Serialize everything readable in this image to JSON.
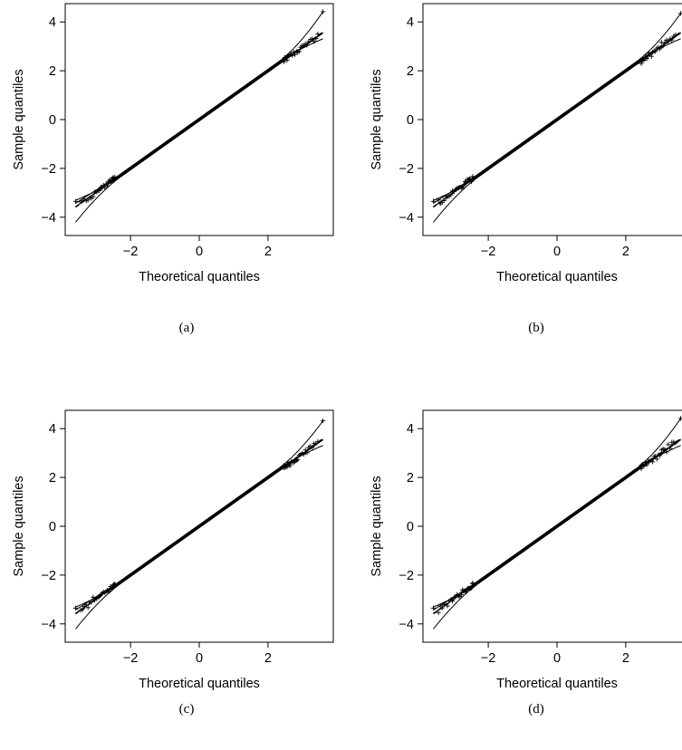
{
  "figure": {
    "panels": [
      {
        "caption": "(a)",
        "upper_tail_top": 4.42
      },
      {
        "caption": "(b)",
        "upper_tail_top": 4.35
      },
      {
        "caption": "(c)",
        "upper_tail_top": 4.32
      },
      {
        "caption": "(d)",
        "upper_tail_top": 4.42
      }
    ]
  },
  "chart_data": [
    {
      "type": "scatter",
      "subtype": "normal-qq-plot-with-envelope",
      "caption": "(a)",
      "xlabel": "Theoretical quantiles",
      "ylabel": "Sample quantiles",
      "xlim": [
        -3.9,
        3.9
      ],
      "ylim": [
        -4.75,
        4.75
      ],
      "xticks": [
        -2,
        0,
        2
      ],
      "xtick_labels": [
        "−2",
        "0",
        "2"
      ],
      "yticks": [
        -4,
        -2,
        0,
        2,
        4
      ],
      "ytick_labels": [
        "−4",
        "−2",
        "0",
        "2",
        "4"
      ],
      "grid": false,
      "points_x_range": [
        -3.6,
        3.6
      ],
      "reference_line": {
        "style": "dashed",
        "slope": 1.0,
        "intercept": 0.0
      },
      "envelope": {
        "style": "solid",
        "lower_tail_min": -4.2,
        "upper_tail_max": 4.42
      },
      "points_marker": "+"
    },
    {
      "type": "scatter",
      "subtype": "normal-qq-plot-with-envelope",
      "caption": "(b)",
      "xlabel": "Theoretical quantiles",
      "ylabel": "Sample quantiles",
      "xlim": [
        -3.9,
        3.9
      ],
      "ylim": [
        -4.75,
        4.75
      ],
      "xticks": [
        -2,
        0,
        2
      ],
      "xtick_labels": [
        "−2",
        "0",
        "2"
      ],
      "yticks": [
        -4,
        -2,
        0,
        2,
        4
      ],
      "ytick_labels": [
        "−4",
        "−2",
        "0",
        "2",
        "4"
      ],
      "grid": false,
      "points_x_range": [
        -3.6,
        3.6
      ],
      "reference_line": {
        "style": "dashed",
        "slope": 1.0,
        "intercept": 0.0
      },
      "envelope": {
        "style": "solid",
        "lower_tail_min": -4.2,
        "upper_tail_max": 4.35
      },
      "points_marker": "+"
    },
    {
      "type": "scatter",
      "subtype": "normal-qq-plot-with-envelope",
      "caption": "(c)",
      "xlabel": "Theoretical quantiles",
      "ylabel": "Sample quantiles",
      "xlim": [
        -3.9,
        3.9
      ],
      "ylim": [
        -4.75,
        4.75
      ],
      "xticks": [
        -2,
        0,
        2
      ],
      "xtick_labels": [
        "−2",
        "0",
        "2"
      ],
      "yticks": [
        -4,
        -2,
        0,
        2,
        4
      ],
      "ytick_labels": [
        "−4",
        "−2",
        "0",
        "2",
        "4"
      ],
      "grid": false,
      "points_x_range": [
        -3.6,
        3.6
      ],
      "reference_line": {
        "style": "dashed",
        "slope": 1.0,
        "intercept": 0.0
      },
      "envelope": {
        "style": "solid",
        "lower_tail_min": -4.2,
        "upper_tail_max": 4.32
      },
      "points_marker": "+"
    },
    {
      "type": "scatter",
      "subtype": "normal-qq-plot-with-envelope",
      "caption": "(d)",
      "xlabel": "Theoretical quantiles",
      "ylabel": "Sample quantiles",
      "xlim": [
        -3.9,
        3.9
      ],
      "ylim": [
        -4.75,
        4.75
      ],
      "xticks": [
        -2,
        0,
        2
      ],
      "xtick_labels": [
        "−2",
        "0",
        "2"
      ],
      "yticks": [
        -4,
        -2,
        0,
        2,
        4
      ],
      "ytick_labels": [
        "−4",
        "−2",
        "0",
        "2",
        "4"
      ],
      "grid": false,
      "points_x_range": [
        -3.6,
        3.6
      ],
      "reference_line": {
        "style": "dashed",
        "slope": 1.0,
        "intercept": 0.0
      },
      "envelope": {
        "style": "solid",
        "lower_tail_min": -4.2,
        "upper_tail_max": 4.42
      },
      "points_marker": "+"
    }
  ]
}
